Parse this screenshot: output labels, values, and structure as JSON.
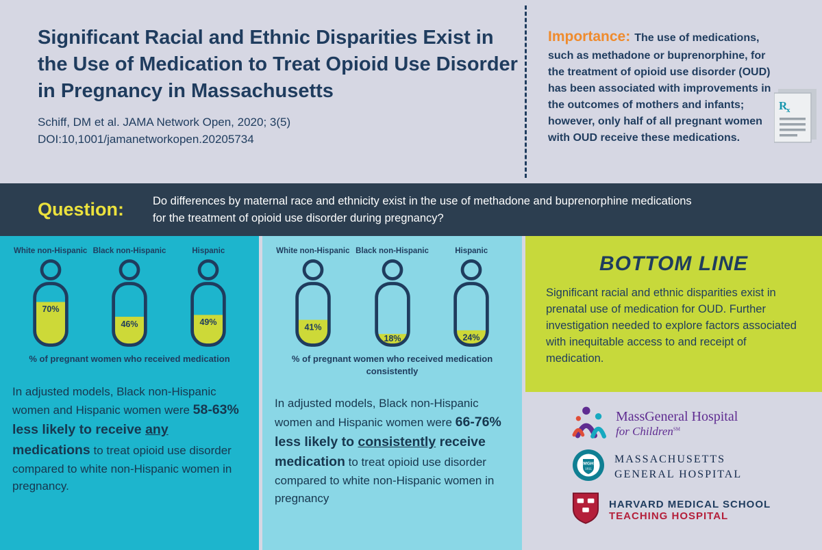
{
  "colors": {
    "page_bg": "#d6d7e3",
    "navy": "#1f3c5e",
    "orange": "#ef8b2d",
    "band_navy": "#2c3e50",
    "question_yellow": "#ece23d",
    "panel_teal": "#1db5cd",
    "panel_light_cyan": "#8ad7e6",
    "bottom_line_green": "#c7d93b",
    "person_fill_green": "#cdd938",
    "mgfc_purple": "#5f2c91",
    "harvard_crimson": "#b41f3a"
  },
  "header": {
    "title": "Significant Racial and Ethnic Disparities Exist in the Use of Medication to Treat Opioid Use Disorder in Pregnancy in Massachusetts",
    "citation_line1": "Schiff, DM et al. JAMA Network Open, 2020; 3(5)",
    "citation_line2": "DOI:10,1001/jamanetworkopen.20205734"
  },
  "importance": {
    "label": "Importance:",
    "text": "The use of medications, such as methadone or buprenorphine, for the treatment of opioid use disorder (OUD) has been associated with improvements in the outcomes of mothers and infants; however, only half of all pregnant women with OUD receive these medications.",
    "icon": "rx-document-icon",
    "rx_symbol": "Rx"
  },
  "question": {
    "label": "Question:",
    "text": "Do differences by maternal race and ethnicity exist in the use of methadone and buprenorphine medications for the treatment of opioid use disorder during pregnancy?"
  },
  "chart_data": [
    {
      "type": "pictogram-fill",
      "categories": [
        "White non-Hispanic",
        "Black non-Hispanic",
        "Hispanic"
      ],
      "values": [
        70,
        46,
        49
      ],
      "unit": "%",
      "caption": "% of pregnant women who received medication",
      "fill_color": "#cdd938",
      "outline_color": "#1f3c5e"
    },
    {
      "type": "pictogram-fill",
      "categories": [
        "White non-Hispanic",
        "Black non-Hispanic",
        "Hispanic"
      ],
      "values": [
        41,
        18,
        24
      ],
      "unit": "%",
      "caption": "% of pregnant women who received medication consistently",
      "fill_color": "#cdd938",
      "outline_color": "#1f3c5e"
    }
  ],
  "panels": [
    {
      "text_segments": [
        {
          "text": "In adjusted models, Black non-Hispanic women and Hispanic women were ",
          "bold": false,
          "underline": false
        },
        {
          "text": "58-63% less likely to receive ",
          "bold": true,
          "underline": false
        },
        {
          "text": "any",
          "bold": true,
          "underline": true
        },
        {
          "text": " medications",
          "bold": true,
          "underline": false
        },
        {
          "text": " to treat opioid use disorder compared to white non-Hispanic women in pregnancy.",
          "bold": false,
          "underline": false
        }
      ]
    },
    {
      "text_segments": [
        {
          "text": "In adjusted models, Black non-Hispanic women and Hispanic women were ",
          "bold": false,
          "underline": false
        },
        {
          "text": "66-76% less likely to ",
          "bold": true,
          "underline": false
        },
        {
          "text": "consistently",
          "bold": true,
          "underline": true
        },
        {
          "text": " receive medication",
          "bold": true,
          "underline": false
        },
        {
          "text": " to treat opioid use disorder compared to white non-Hispanic women in pregnancy",
          "bold": false,
          "underline": false
        }
      ]
    }
  ],
  "bottom_line": {
    "heading": "BOTTOM LINE",
    "text": "Significant racial and ethnic disparities exist in prenatal use of medication for OUD. Further investigation needed to explore factors associated with inequitable access to and receipt of medication."
  },
  "logos": [
    {
      "name": "massgeneral-hospital-for-children",
      "line1": "MassGeneral Hospital",
      "line2": "for Children",
      "mark": "SM"
    },
    {
      "name": "massachusetts-general-hospital",
      "line1": "MASSACHUSETTS",
      "line2": "GENERAL HOSPITAL",
      "seal_text": "MGH",
      "seal_year": "1811"
    },
    {
      "name": "harvard-medical-school-teaching-hospital",
      "line1": "HARVARD MEDICAL SCHOOL",
      "line2": "TEACHING HOSPITAL"
    }
  ]
}
